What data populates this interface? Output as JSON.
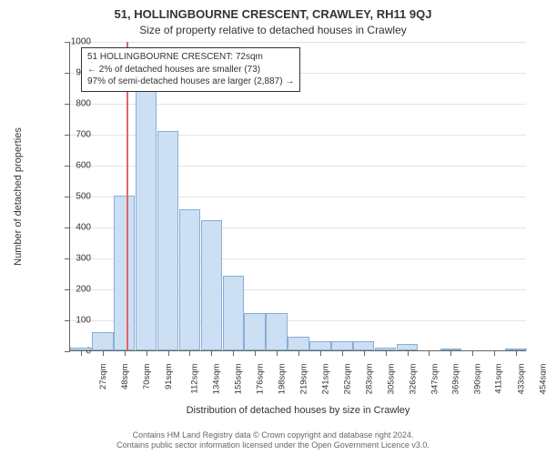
{
  "title": "51, HOLLINGBOURNE CRESCENT, CRAWLEY, RH11 9QJ",
  "subtitle": "Size of property relative to detached houses in Crawley",
  "chart": {
    "type": "histogram",
    "ylabel": "Number of detached properties",
    "xlabel": "Distribution of detached houses by size in Crawley",
    "ylim": [
      0,
      1000
    ],
    "ytick_step": 100,
    "xtick_labels": [
      "27sqm",
      "48sqm",
      "70sqm",
      "91sqm",
      "112sqm",
      "134sqm",
      "155sqm",
      "176sqm",
      "198sqm",
      "219sqm",
      "241sqm",
      "262sqm",
      "283sqm",
      "305sqm",
      "326sqm",
      "347sqm",
      "369sqm",
      "390sqm",
      "411sqm",
      "433sqm",
      "454sqm"
    ],
    "bar_values": [
      10,
      60,
      500,
      880,
      710,
      455,
      420,
      240,
      120,
      120,
      45,
      30,
      30,
      30,
      10,
      20,
      0,
      5,
      0,
      0,
      5
    ],
    "bar_fill": "#cddff3",
    "bar_border": "#88aed6",
    "grid_color": "#e4e4e4",
    "axis_color": "#666666",
    "marker_x": 72,
    "marker_color": "#e06666",
    "annotation": {
      "line1": "51 HOLLINGBOURNE CRESCENT: 72sqm",
      "line2": "← 2% of detached houses are smaller (73)",
      "line3": "97% of semi-detached houses are larger (2,887) →"
    }
  },
  "footer": {
    "line1": "Contains HM Land Registry data © Crown copyright and database right 2024.",
    "line2": "Contains public sector information licensed under the Open Government Licence v3.0."
  }
}
